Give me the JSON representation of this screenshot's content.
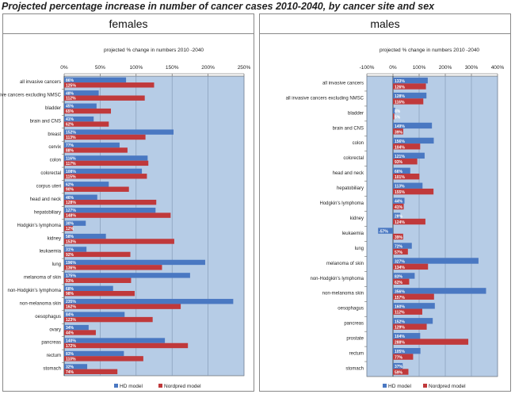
{
  "title": "Projected percentage increase in number of cancer cases 2010-2040, by cancer site and sex",
  "colors": {
    "hd": "#4a78c2",
    "nordpred": "#c0393b",
    "plot_bg": "#b6cce6",
    "grid": "#7f94b0"
  },
  "chart_data": [
    {
      "type": "bar",
      "panel_title": "females",
      "title": "projected % change in numbers 2010 -2040",
      "orientation": "horizontal",
      "xlim": [
        0,
        250
      ],
      "xticks": [
        0,
        50,
        100,
        150,
        200,
        250
      ],
      "xtick_labels": [
        "0%",
        "50%",
        "100%",
        "150%",
        "200%",
        "250%"
      ],
      "legend": {
        "position": "bottom",
        "entries": [
          "HD model",
          "Nordpred model"
        ]
      },
      "categories": [
        "all invasive cancers",
        "all invasive cancers excluding NMSC",
        "bladder",
        "brain and CNS",
        "breast",
        "cervix",
        "colon",
        "colorectal",
        "corpus uteri",
        "head and neck",
        "hepatobiliary",
        "Hodgkin's lymphoma",
        "kidney",
        "leukaemia",
        "lung",
        "melanoma of skin",
        "non-Hodgkin's lymphoma",
        "non-melanoma skin",
        "oesophagus",
        "ovary",
        "pancreas",
        "rectum",
        "stomach"
      ],
      "series": [
        {
          "name": "HD model",
          "values": [
            86,
            48,
            45,
            41,
            152,
            77,
            116,
            108,
            62,
            46,
            127,
            30,
            58,
            31,
            196,
            175,
            68,
            235,
            84,
            34,
            140,
            83,
            32
          ],
          "labels": [
            "86%",
            "48%",
            "45%",
            "41%",
            "152%",
            "77%",
            "116%",
            "108%",
            "62%",
            "46%",
            "127%",
            "30%",
            "58%",
            "31%",
            "196%",
            "175%",
            "68%",
            "235%",
            "84%",
            "34%",
            "140%",
            "83%",
            "32%"
          ]
        },
        {
          "name": "Nordpred model",
          "values": [
            125,
            112,
            65,
            62,
            113,
            88,
            117,
            115,
            90,
            128,
            148,
            12,
            153,
            92,
            136,
            93,
            98,
            162,
            123,
            44,
            172,
            110,
            74
          ],
          "labels": [
            "125%",
            "112%",
            "65%",
            "62%",
            "113%",
            "88%",
            "117%",
            "115%",
            "90%",
            "128%",
            "148%",
            "12%",
            "153%",
            "92%",
            "136%",
            "93%",
            "98%",
            "162%",
            "123%",
            "44%",
            "172%",
            "110%",
            "74%"
          ]
        }
      ]
    },
    {
      "type": "bar",
      "panel_title": "males",
      "title": "projected % change in numbers 2010 -2040",
      "orientation": "horizontal",
      "xlim": [
        -100,
        400
      ],
      "xticks": [
        -100,
        0,
        100,
        200,
        300,
        400
      ],
      "xtick_labels": [
        "-100%",
        "0%",
        "100%",
        "200%",
        "300%",
        "400%"
      ],
      "legend": {
        "position": "bottom",
        "entries": [
          "HD model",
          "Nordpred model"
        ]
      },
      "categories": [
        "all invasive cancers",
        "all invasive cancers excluding NMSC",
        "bladder",
        "brain and CNS",
        "colon",
        "colorectal",
        "head and neck",
        "hepatobiliary",
        "Hodgkin's lymphoma",
        "kidney",
        "leukaemia",
        "lung",
        "melanoma of skin",
        "non-Hodgkin's lymphoma",
        "non-melanoma skin",
        "oesophagus",
        "pancreas",
        "prostate",
        "rectum",
        "stomach"
      ],
      "series": [
        {
          "name": "HD model",
          "values": [
            133,
            128,
            8,
            149,
            156,
            121,
            66,
            113,
            44,
            28,
            -57,
            72,
            327,
            83,
            356,
            160,
            152,
            104,
            105,
            37
          ],
          "labels": [
            "133%",
            "128%",
            "8%",
            "149%",
            "156%",
            "121%",
            "66%",
            "113%",
            "44%",
            "28%",
            "-57%",
            "72%",
            "327%",
            "83%",
            "356%",
            "160%",
            "152%",
            "104%",
            "105%",
            "37%"
          ]
        },
        {
          "name": "Nordpred model",
          "values": [
            126,
            116,
            5,
            39,
            104,
            93,
            101,
            155,
            41,
            124,
            39,
            57,
            134,
            62,
            157,
            112,
            129,
            288,
            77,
            59
          ],
          "labels": [
            "126%",
            "116%",
            "5%",
            "39%",
            "104%",
            "93%",
            "101%",
            "155%",
            "41%",
            "124%",
            "39%",
            "57%",
            "134%",
            "62%",
            "157%",
            "112%",
            "129%",
            "288%",
            "77%",
            "59%"
          ]
        }
      ]
    }
  ]
}
